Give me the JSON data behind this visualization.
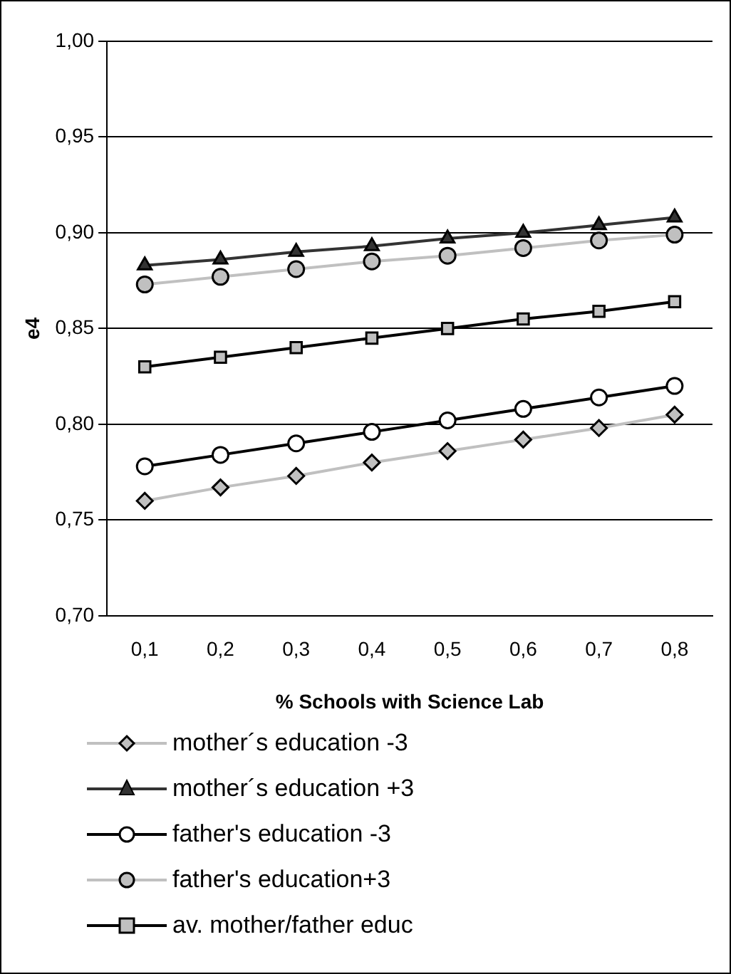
{
  "chart_data": {
    "type": "line",
    "xlabel": "% Schools with Science Lab",
    "ylabel": "e4",
    "categories": [
      "0,1",
      "0,2",
      "0,3",
      "0,4",
      "0,5",
      "0,6",
      "0,7",
      "0,8"
    ],
    "series": [
      {
        "name": "mother´s education -3",
        "color": "#c0c0c0",
        "marker": "diamond",
        "values": [
          0.76,
          0.767,
          0.773,
          0.78,
          0.786,
          0.792,
          0.798,
          0.805
        ]
      },
      {
        "name": "mother´s education +3",
        "color": "#333333",
        "marker": "triangle",
        "values": [
          0.883,
          0.886,
          0.89,
          0.893,
          0.897,
          0.9,
          0.904,
          0.908
        ]
      },
      {
        "name": "father's education -3",
        "color": "#000000",
        "marker": "circle",
        "values": [
          0.778,
          0.784,
          0.79,
          0.796,
          0.802,
          0.808,
          0.814,
          0.82
        ]
      },
      {
        "name": "father's education+3",
        "color": "#c0c0c0",
        "marker": "circle",
        "values": [
          0.873,
          0.877,
          0.881,
          0.885,
          0.888,
          0.892,
          0.896,
          0.899
        ]
      },
      {
        "name": "av. mother/father educ",
        "color": "#000000",
        "marker": "square",
        "values": [
          0.83,
          0.835,
          0.84,
          0.845,
          0.85,
          0.855,
          0.859,
          0.864
        ]
      }
    ],
    "ylim": [
      0.7,
      1.0
    ],
    "yticks": [
      {
        "value": 0.7,
        "label": "0,70"
      },
      {
        "value": 0.75,
        "label": "0,75"
      },
      {
        "value": 0.8,
        "label": "0,80"
      },
      {
        "value": 0.85,
        "label": "0,85"
      },
      {
        "value": 0.9,
        "label": "0,90"
      },
      {
        "value": 0.95,
        "label": "0,95"
      },
      {
        "value": 1.0,
        "label": "1,00"
      }
    ],
    "grid": "y",
    "legend": "bottom"
  }
}
